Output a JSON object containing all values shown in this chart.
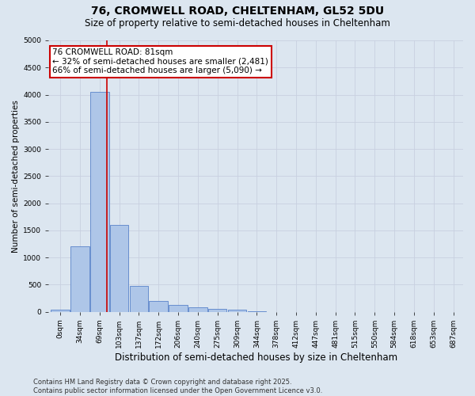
{
  "title_line1": "76, CROMWELL ROAD, CHELTENHAM, GL52 5DU",
  "title_line2": "Size of property relative to semi-detached houses in Cheltenham",
  "xlabel": "Distribution of semi-detached houses by size in Cheltenham",
  "ylabel": "Number of semi-detached properties",
  "bins": [
    "0sqm",
    "34sqm",
    "69sqm",
    "103sqm",
    "137sqm",
    "172sqm",
    "206sqm",
    "240sqm",
    "275sqm",
    "309sqm",
    "344sqm",
    "378sqm",
    "412sqm",
    "447sqm",
    "481sqm",
    "515sqm",
    "550sqm",
    "584sqm",
    "618sqm",
    "653sqm",
    "687sqm"
  ],
  "bar_values": [
    30,
    1200,
    4050,
    1600,
    480,
    200,
    130,
    80,
    50,
    30,
    10,
    0,
    0,
    0,
    0,
    0,
    0,
    0,
    0,
    0,
    0
  ],
  "bar_color": "#aec6e8",
  "bar_edge_color": "#4472c4",
  "grid_color": "#c8d0e0",
  "background_color": "#dce6f0",
  "vline_color": "#cc0000",
  "ylim": [
    0,
    5000
  ],
  "yticks": [
    0,
    500,
    1000,
    1500,
    2000,
    2500,
    3000,
    3500,
    4000,
    4500,
    5000
  ],
  "annotation_box_color": "#ffffff",
  "annotation_box_edge": "#cc0000",
  "property_label": "76 CROMWELL ROAD: 81sqm",
  "annotation_smaller": "← 32% of semi-detached houses are smaller (2,481)",
  "annotation_larger": "66% of semi-detached houses are larger (5,090) →",
  "footnote": "Contains HM Land Registry data © Crown copyright and database right 2025.\nContains public sector information licensed under the Open Government Licence v3.0.",
  "title_fontsize1": 10,
  "title_fontsize2": 8.5,
  "annot_fontsize": 7.5,
  "footnote_fontsize": 6.0,
  "ylabel_fontsize": 7.5,
  "xlabel_fontsize": 8.5,
  "tick_fontsize": 6.5
}
